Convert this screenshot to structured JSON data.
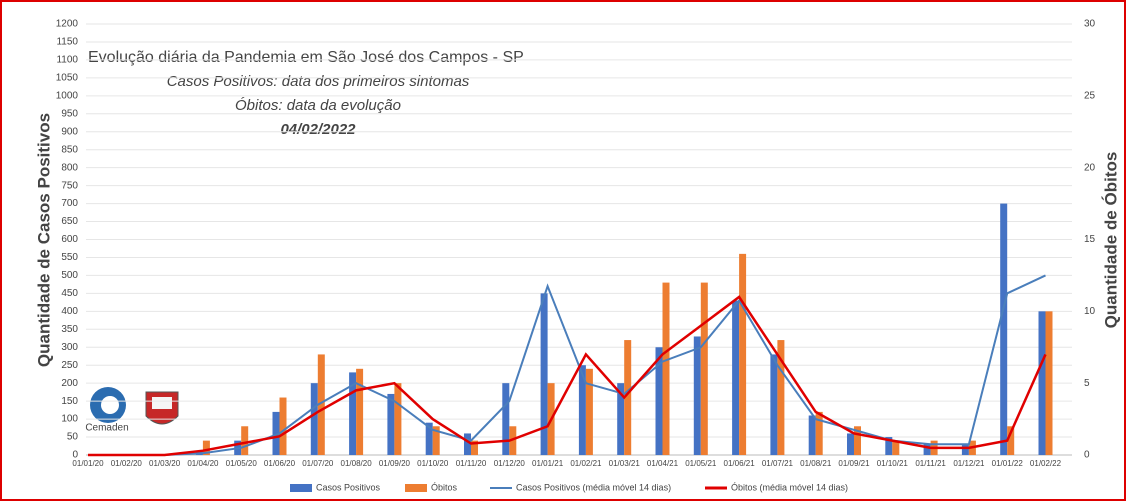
{
  "chart_data": {
    "type": "bar",
    "annotations": [
      "Evolução diária da Pandemia em São José dos Campos - SP",
      "Casos Positivos: data dos primeiros sintomas",
      "Óbitos: data da evolução",
      "04/02/2022"
    ],
    "logo_text": "Cemaden",
    "ylabel": "Quantidade de Casos Positivos",
    "y2label": "Quantidade de Óbitos",
    "categories": [
      "01/01/20",
      "01/02/20",
      "01/03/20",
      "01/04/20",
      "01/05/20",
      "01/06/20",
      "01/07/20",
      "01/08/20",
      "01/09/20",
      "01/10/20",
      "01/11/20",
      "01/12/20",
      "01/01/21",
      "01/02/21",
      "01/03/21",
      "01/04/21",
      "01/05/21",
      "01/06/21",
      "01/07/21",
      "01/08/21",
      "01/09/21",
      "01/10/21",
      "01/11/21",
      "01/12/21",
      "01/01/22",
      "01/02/22"
    ],
    "series": [
      {
        "name": "Casos Positivos",
        "color": "#4472c4",
        "kind": "bar",
        "values": [
          0,
          0,
          0,
          10,
          40,
          120,
          200,
          230,
          170,
          90,
          60,
          200,
          450,
          250,
          200,
          300,
          330,
          430,
          280,
          110,
          60,
          50,
          30,
          30,
          700,
          400
        ]
      },
      {
        "name": "Óbitos",
        "color": "#ed7d31",
        "kind": "bar",
        "axis": "y2",
        "values": [
          0,
          0,
          0,
          1,
          2,
          4,
          7,
          6,
          5,
          2,
          1,
          2,
          5,
          6,
          8,
          12,
          12,
          14,
          8,
          3,
          2,
          1,
          1,
          1,
          2,
          10
        ]
      },
      {
        "name": "Casos Positivos (média móvel 14 dias)",
        "color": "#4a7ebb",
        "kind": "line",
        "values": [
          0,
          0,
          0,
          5,
          20,
          60,
          140,
          200,
          150,
          70,
          40,
          150,
          470,
          200,
          170,
          260,
          300,
          430,
          250,
          100,
          70,
          40,
          30,
          30,
          450,
          500
        ]
      },
      {
        "name": "Óbitos (média móvel 14 dias)",
        "color": "#e00000",
        "kind": "line",
        "axis": "y2",
        "values": [
          0,
          0,
          0,
          0.3,
          0.8,
          1.3,
          3,
          4.5,
          5,
          2.5,
          0.8,
          1,
          2,
          7,
          4,
          7,
          9,
          11,
          7,
          3,
          1.5,
          1,
          0.5,
          0.5,
          1,
          7
        ]
      }
    ],
    "ylim": [
      0,
      1200
    ],
    "yticks": [
      0,
      50,
      100,
      150,
      200,
      250,
      300,
      350,
      400,
      450,
      500,
      550,
      600,
      650,
      700,
      750,
      800,
      850,
      900,
      950,
      1000,
      1050,
      1100,
      1150,
      1200
    ],
    "y2lim": [
      0,
      30
    ],
    "y2ticks": [
      0,
      5,
      10,
      15,
      20,
      25,
      30
    ],
    "grid": true,
    "legend": "bottom"
  }
}
